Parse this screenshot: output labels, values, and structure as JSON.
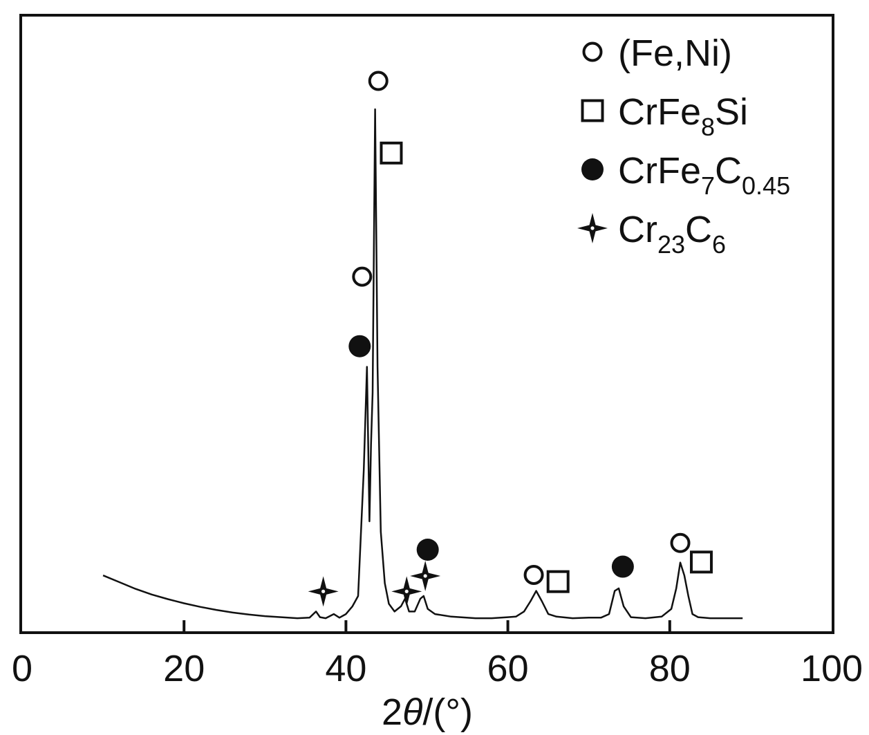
{
  "chart_data": {
    "type": "line",
    "xlabel_prefix": "2",
    "xlabel_theta": "θ",
    "xlabel_suffix": "/(°)",
    "ylabel": "",
    "xlim": [
      0,
      100
    ],
    "x_ticks": [
      "0",
      "20",
      "40",
      "60",
      "80",
      "100"
    ],
    "grid": false,
    "legend_position": "top-right",
    "legend": [
      {
        "marker": "open-circle",
        "parts": [
          {
            "t": "(Fe,Ni)",
            "sub": false
          }
        ]
      },
      {
        "marker": "open-square",
        "parts": [
          {
            "t": "CrFe",
            "sub": false
          },
          {
            "t": "8",
            "sub": true
          },
          {
            "t": "Si",
            "sub": false
          }
        ]
      },
      {
        "marker": "filled-circle",
        "parts": [
          {
            "t": "CrFe",
            "sub": false
          },
          {
            "t": "7",
            "sub": true
          },
          {
            "t": "C",
            "sub": false
          },
          {
            "t": "0.45",
            "sub": true
          }
        ]
      },
      {
        "marker": "star",
        "parts": [
          {
            "t": "Cr",
            "sub": false
          },
          {
            "t": "23",
            "sub": true
          },
          {
            "t": "C",
            "sub": false
          },
          {
            "t": "6",
            "sub": true
          }
        ]
      }
    ],
    "series": [
      {
        "x": [
          10,
          12,
          14,
          16,
          18,
          20,
          22,
          24,
          26,
          28,
          30,
          32,
          34,
          35.5,
          36.3,
          36.8,
          37.5,
          38.5,
          39.2,
          40,
          40.8,
          41.5,
          42.2,
          42.6,
          42.9,
          43.1,
          43.3,
          43.6,
          43.9,
          44.3,
          44.8,
          45.3,
          46,
          46.8,
          47.3,
          47.8,
          48.5,
          49.2,
          49.6,
          50.1,
          51,
          53,
          56,
          58,
          60,
          61,
          62,
          62.8,
          63.5,
          64.2,
          65,
          66,
          68,
          70,
          71.5,
          72.5,
          73.2,
          73.7,
          74.3,
          75.2,
          77,
          79,
          80.2,
          80.8,
          81.3,
          81.8,
          82.3,
          82.8,
          83.5,
          85,
          87,
          89
        ],
        "y": [
          9.5,
          8.2,
          6.9,
          5.8,
          4.9,
          4.1,
          3.4,
          2.8,
          2.3,
          1.9,
          1.6,
          1.4,
          1.2,
          1.3,
          2.5,
          1.4,
          1.2,
          2.0,
          1.3,
          2.0,
          3.5,
          5.5,
          30,
          50,
          20,
          35,
          45,
          100,
          50,
          18,
          8,
          4,
          2.5,
          3.5,
          5.0,
          2.5,
          2.5,
          5.0,
          5.5,
          3.0,
          2.0,
          1.5,
          1.2,
          1.2,
          1.4,
          1.5,
          2.5,
          4.5,
          6.5,
          4.5,
          2.0,
          1.5,
          1.2,
          1.3,
          1.3,
          2.0,
          6.5,
          7.0,
          3.5,
          1.4,
          1.2,
          1.5,
          3.0,
          7.0,
          12.0,
          9.5,
          5.5,
          2.0,
          1.4,
          1.2,
          1.2,
          1.2
        ]
      }
    ],
    "annotations": [
      {
        "x": 44.0,
        "y": 105.5,
        "marker": "open-circle"
      },
      {
        "x": 45.6,
        "y": 91.5,
        "marker": "open-square"
      },
      {
        "x": 42.0,
        "y": 67.5,
        "marker": "open-circle"
      },
      {
        "x": 41.7,
        "y": 54.0,
        "marker": "filled-circle"
      },
      {
        "x": 50.1,
        "y": 14.5,
        "marker": "filled-circle"
      },
      {
        "x": 49.8,
        "y": 9.4,
        "marker": "star"
      },
      {
        "x": 47.5,
        "y": 6.4,
        "marker": "star"
      },
      {
        "x": 37.2,
        "y": 6.4,
        "marker": "star"
      },
      {
        "x": 63.2,
        "y": 9.6,
        "marker": "open-circle"
      },
      {
        "x": 66.2,
        "y": 8.3,
        "marker": "open-square"
      },
      {
        "x": 74.2,
        "y": 11.2,
        "marker": "filled-circle"
      },
      {
        "x": 81.3,
        "y": 15.8,
        "marker": "open-circle"
      },
      {
        "x": 83.9,
        "y": 12.1,
        "marker": "open-square"
      }
    ]
  }
}
